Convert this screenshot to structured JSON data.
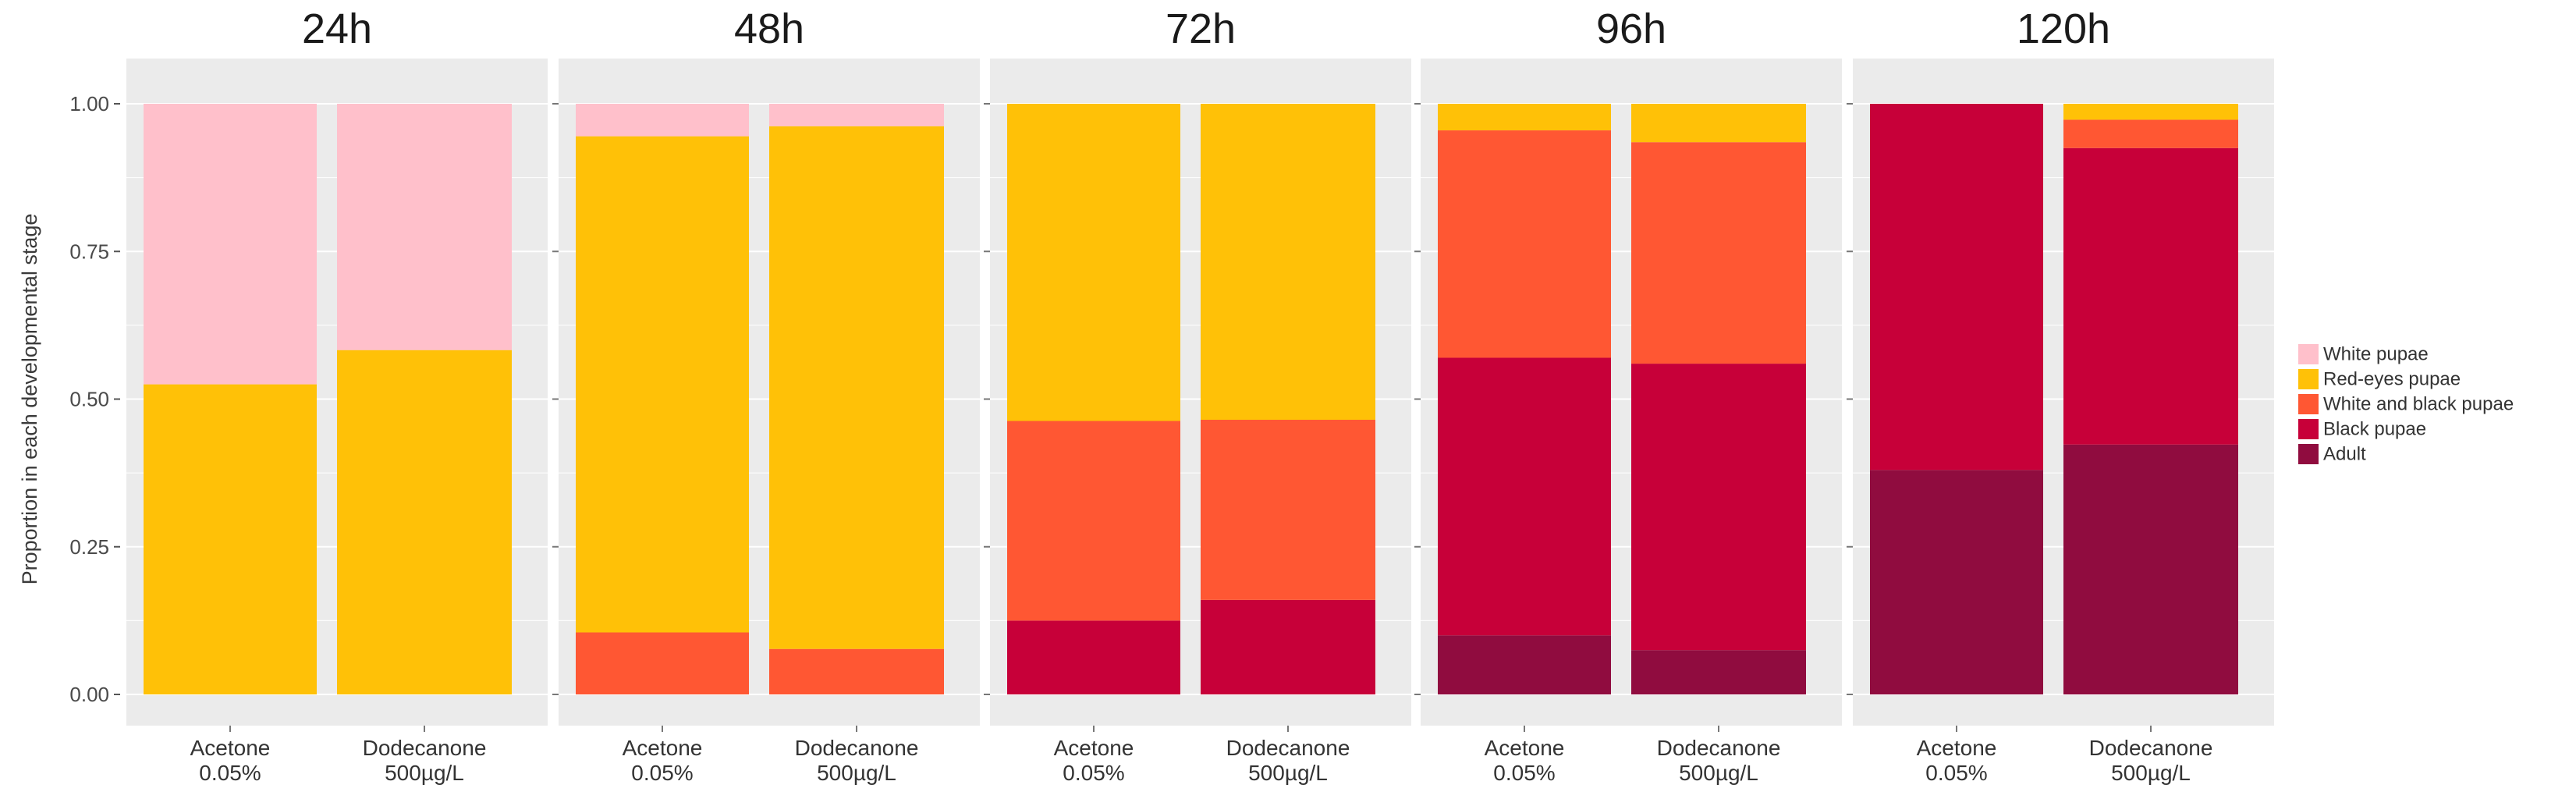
{
  "chart_data": {
    "type": "bar",
    "stacked": true,
    "ylabel": "Proportion in each developmental stage",
    "xlabel": "",
    "ylim": [
      0,
      1
    ],
    "yticks": [
      "0.00",
      "0.25",
      "0.50",
      "0.75",
      "1.00"
    ],
    "categories": [
      {
        "line1": "Acetone",
        "line2": "0.05%"
      },
      {
        "line1": "Dodecanone",
        "line2": "500µg/L"
      }
    ],
    "legend": [
      {
        "name": "White pupae",
        "color": "#FFC0CB"
      },
      {
        "name": "Red-eyes pupae",
        "color": "#FFC107"
      },
      {
        "name": "White and black pupae",
        "color": "#FF5733"
      },
      {
        "name": "Black pupae",
        "color": "#C70039"
      },
      {
        "name": "Adult",
        "color": "#900C3F"
      }
    ],
    "panels": [
      {
        "title": "24h",
        "bars": [
          {
            "Adult": 0,
            "Black pupae": 0,
            "White and black pupae": 0,
            "Red-eyes pupae": 0.525,
            "White pupae": 0.475
          },
          {
            "Adult": 0,
            "Black pupae": 0,
            "White and black pupae": 0,
            "Red-eyes pupae": 0.583,
            "White pupae": 0.417
          }
        ]
      },
      {
        "title": "48h",
        "bars": [
          {
            "Adult": 0,
            "Black pupae": 0,
            "White and black pupae": 0.105,
            "Red-eyes pupae": 0.84,
            "White pupae": 0.055
          },
          {
            "Adult": 0,
            "Black pupae": 0,
            "White and black pupae": 0.077,
            "Red-eyes pupae": 0.885,
            "White pupae": 0.038
          }
        ]
      },
      {
        "title": "72h",
        "bars": [
          {
            "Adult": 0,
            "Black pupae": 0.125,
            "White and black pupae": 0.338,
            "Red-eyes pupae": 0.537,
            "White pupae": 0
          },
          {
            "Adult": 0,
            "Black pupae": 0.16,
            "White and black pupae": 0.305,
            "Red-eyes pupae": 0.535,
            "White pupae": 0
          }
        ]
      },
      {
        "title": "96h",
        "bars": [
          {
            "Adult": 0.1,
            "Black pupae": 0.47,
            "White and black pupae": 0.385,
            "Red-eyes pupae": 0.045,
            "White pupae": 0
          },
          {
            "Adult": 0.075,
            "Black pupae": 0.485,
            "White and black pupae": 0.375,
            "Red-eyes pupae": 0.065,
            "White pupae": 0
          }
        ]
      },
      {
        "title": "120h",
        "bars": [
          {
            "Adult": 0.38,
            "Black pupae": 0.62,
            "White and black pupae": 0,
            "Red-eyes pupae": 0,
            "White pupae": 0
          },
          {
            "Adult": 0.423,
            "Black pupae": 0.502,
            "White and black pupae": 0.048,
            "Red-eyes pupae": 0.027,
            "White pupae": 0
          }
        ]
      }
    ]
  }
}
